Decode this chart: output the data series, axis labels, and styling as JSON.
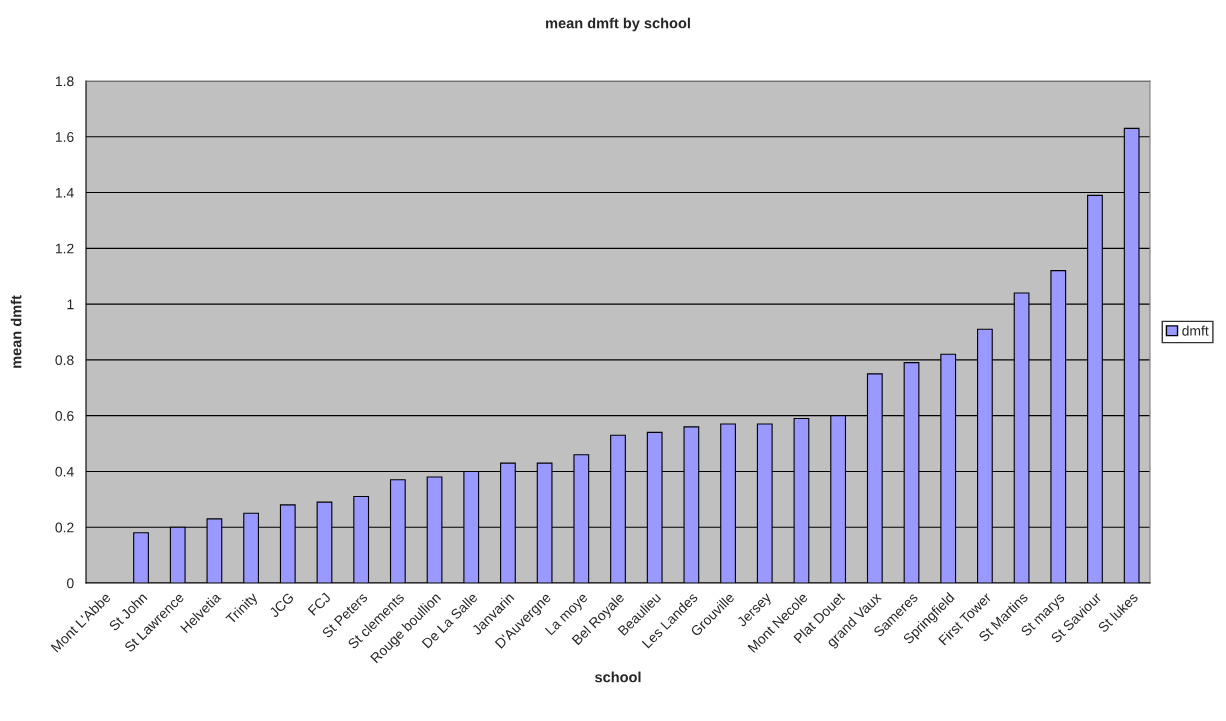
{
  "chart_data": {
    "type": "bar",
    "title": "mean dmft by school",
    "xlabel": "school",
    "ylabel": "mean dmft",
    "categories": [
      "Mont L'Abbe",
      "St John",
      "St Lawrence",
      "Helvetia",
      "Trinity",
      "JCG",
      "FCJ",
      "St Peters",
      "St clements",
      "Rouge boullion",
      "De La Salle",
      "Janvarin",
      "D'Auvergne",
      "La moye",
      "Bel Royale",
      "Beaulieu",
      "Les Landes",
      "Grouville",
      "Jersey",
      "Mont Necole",
      "Plat Douet",
      "grand Vaux",
      "Sameres",
      "Springfield",
      "First Tower",
      "St Martins",
      "St marys",
      "St Saviour",
      "St lukes"
    ],
    "series": [
      {
        "name": "dmft",
        "color": "#9999ff",
        "values": [
          null,
          0.18,
          0.2,
          0.23,
          0.25,
          0.28,
          0.29,
          0.31,
          0.37,
          0.38,
          0.4,
          0.43,
          0.43,
          0.46,
          0.53,
          0.54,
          0.56,
          0.57,
          0.57,
          0.59,
          0.6,
          0.75,
          0.79,
          0.82,
          0.91,
          1.04,
          1.12,
          1.39,
          1.63
        ]
      }
    ],
    "ylim": [
      0,
      1.8
    ],
    "yticks": [
      0,
      0.2,
      0.4,
      0.6,
      0.8,
      1,
      1.2,
      1.4,
      1.6,
      1.8
    ],
    "grid": "y",
    "legend": "right"
  }
}
